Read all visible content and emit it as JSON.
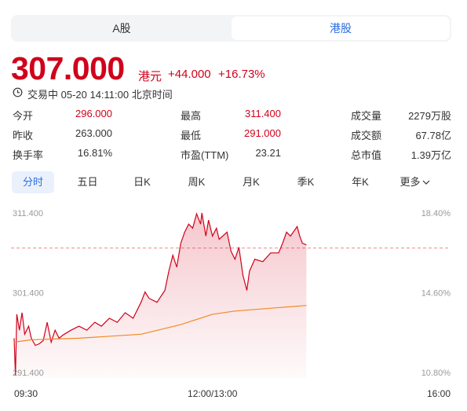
{
  "tabs": [
    {
      "label": "A股",
      "selected": false
    },
    {
      "label": "港股",
      "selected": true
    }
  ],
  "quote": {
    "price": "307.000",
    "currency": "港元",
    "change": "+44.000",
    "change_pct": "+16.73%",
    "status": "交易中 05-20 14:11:00 北京时间"
  },
  "stats": [
    [
      {
        "label": "今开",
        "value": "296.000",
        "color": "#d0021b"
      },
      {
        "label": "最高",
        "value": "311.400",
        "color": "#d0021b"
      },
      {
        "label": "成交量",
        "value": "2279万股",
        "color": "#333333"
      }
    ],
    [
      {
        "label": "昨收",
        "value": "263.000",
        "color": "#333333"
      },
      {
        "label": "最低",
        "value": "291.000",
        "color": "#d0021b"
      },
      {
        "label": "成交额",
        "value": "67.78亿",
        "color": "#333333"
      }
    ],
    [
      {
        "label": "换手率",
        "value": "16.81%",
        "color": "#333333"
      },
      {
        "label": "市盈(TTM)",
        "value": "23.21",
        "color": "#333333"
      },
      {
        "label": "总市值",
        "value": "1.39万亿",
        "color": "#333333"
      }
    ]
  ],
  "periods": [
    {
      "label": "分时",
      "selected": true
    },
    {
      "label": "五日",
      "selected": false
    },
    {
      "label": "日K",
      "selected": false
    },
    {
      "label": "周K",
      "selected": false
    },
    {
      "label": "月K",
      "selected": false
    },
    {
      "label": "季K",
      "selected": false
    },
    {
      "label": "年K",
      "selected": false
    },
    {
      "label": "更多",
      "selected": false
    }
  ],
  "chart_data": {
    "type": "line",
    "xlim": [
      0,
      330
    ],
    "xticks": [
      {
        "value": 0,
        "label": "09:30"
      },
      {
        "value": 150,
        "label": "12:00/13:00"
      },
      {
        "value": 330,
        "label": "16:00"
      }
    ],
    "ylim": [
      291.4,
      311.4
    ],
    "yticks": [
      {
        "value": 291.4,
        "label": "291.400"
      },
      {
        "value": 301.4,
        "label": "301.400"
      },
      {
        "value": 311.4,
        "label": "311.400"
      }
    ],
    "y2lim": [
      10.8,
      18.4
    ],
    "y2ticks": [
      {
        "value": 10.8,
        "label": "10.80%"
      },
      {
        "value": 14.6,
        "label": "14.60%"
      },
      {
        "value": 18.4,
        "label": "18.40%"
      }
    ],
    "reference_line": 307,
    "series": [
      {
        "color": "#d0021b",
        "area": true,
        "x": [
          0,
          1,
          2,
          4,
          6,
          8,
          11,
          13,
          16,
          19,
          22,
          25,
          28,
          31,
          34,
          37,
          43,
          49,
          55,
          61,
          66,
          72,
          78,
          84,
          90,
          96,
          99,
          102,
          108,
          114,
          117,
          120,
          123,
          126,
          129,
          132,
          135,
          138,
          141,
          142,
          145,
          147,
          150,
          153,
          155,
          161,
          164,
          167,
          170,
          173,
          176,
          178,
          182,
          188,
          194,
          200,
          203,
          206,
          209,
          214,
          216,
          218,
          221
        ],
        "values": [
          295.7,
          291.0,
          298.7,
          296.7,
          298.9,
          296.2,
          297.2,
          295.7,
          294.8,
          295.0,
          295.4,
          297.7,
          295.2,
          296.7,
          295.7,
          296.1,
          296.7,
          297.2,
          296.7,
          297.7,
          297.2,
          298.2,
          297.7,
          298.9,
          298.2,
          300.2,
          301.5,
          300.7,
          300.2,
          301.7,
          304.1,
          306.1,
          304.6,
          307.6,
          309.0,
          310.0,
          309.5,
          311.3,
          310.0,
          311.4,
          308.5,
          310.5,
          308.5,
          309.5,
          308.1,
          309.0,
          306.6,
          305.6,
          307.1,
          303.6,
          301.7,
          304.1,
          305.6,
          305.3,
          306.4,
          306.4,
          307.6,
          309.0,
          308.5,
          309.7,
          308.5,
          307.6,
          307.4
        ]
      },
      {
        "color": "#f08a24",
        "area": false,
        "x": [
          0,
          13,
          49,
          96,
          126,
          150,
          167,
          197,
          221
        ],
        "values": [
          295.2,
          295.5,
          295.7,
          296.2,
          297.4,
          298.7,
          299.1,
          299.5,
          299.8
        ]
      }
    ]
  }
}
